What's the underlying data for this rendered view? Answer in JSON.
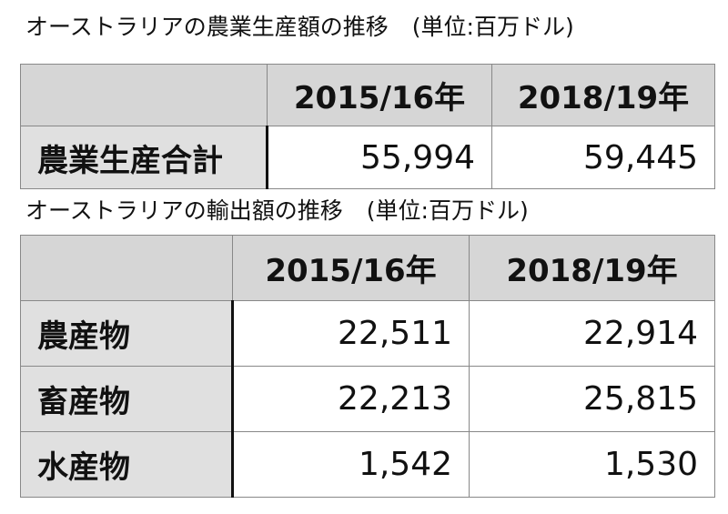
{
  "sections": [
    {
      "title": "オーストラリアの農業生産額の推移",
      "unit": "(単位:百万ドル)",
      "table": {
        "columns": [
          "2015/16年",
          "2018/19年"
        ],
        "rows": [
          [
            "農業生産合計",
            "55,994",
            "59,445"
          ]
        ]
      }
    },
    {
      "title": "オーストラリアの輸出額の推移",
      "unit": "(単位:百万ドル)",
      "table": {
        "columns": [
          "2015/16年",
          "2018/19年"
        ],
        "rows": [
          [
            "農産物",
            "22,511",
            "22,914"
          ],
          [
            "畜産物",
            "22,213",
            "25,815"
          ],
          [
            "水産物",
            "1,542",
            "1,530"
          ]
        ]
      }
    }
  ]
}
